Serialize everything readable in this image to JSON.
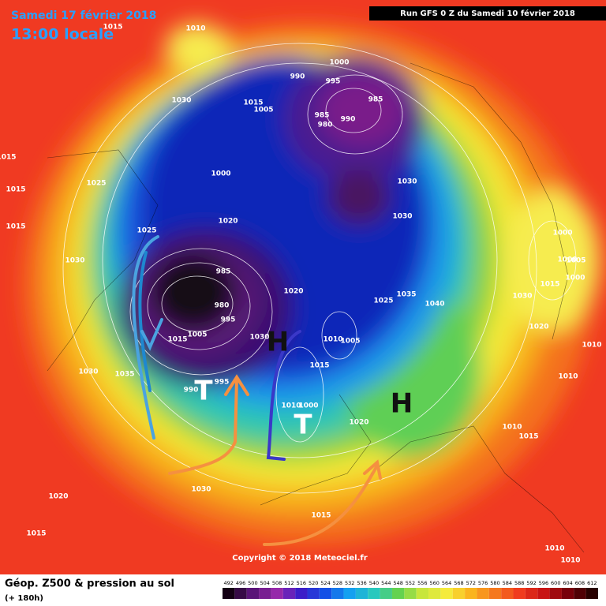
{
  "header": {
    "date": "Samedi 17 février 2018",
    "time": "13:00 locale",
    "run": "Run GFS 0 Z du Samedi 10 février 2018"
  },
  "map": {
    "pressure_labels": [
      "1010",
      "1015",
      "1030",
      "1015",
      "1015",
      "1025",
      "1015",
      "1030",
      "1025",
      "1000",
      "1020",
      "1015",
      "1005",
      "1000",
      "990",
      "995",
      "985",
      "985",
      "980",
      "990",
      "1030",
      "1030",
      "985",
      "980",
      "995",
      "1015",
      "1005",
      "990",
      "995",
      "1030",
      "1035",
      "1030",
      "1020",
      "1025",
      "1035",
      "1040",
      "1010",
      "1005",
      "1015",
      "1010",
      "1000",
      "1020",
      "1030",
      "1020",
      "1015",
      "1015",
      "1000",
      "1000",
      "1005",
      "1000",
      "1015",
      "1030",
      "1020",
      "1010",
      "1010",
      "1010",
      "1015",
      "1010",
      "1010"
    ],
    "systems": [
      "H",
      "H",
      "T",
      "T"
    ],
    "copyright": "Copyright © 2018 Meteociel.fr"
  },
  "legend": {
    "title": "Géop. Z500 & pression au sol",
    "subtitle": "(+ 180h)",
    "scale": [
      492,
      496,
      500,
      504,
      508,
      512,
      516,
      520,
      524,
      528,
      532,
      536,
      540,
      544,
      548,
      552,
      556,
      560,
      564,
      568,
      572,
      576,
      580,
      584,
      588,
      592,
      596,
      600,
      604,
      608,
      612
    ]
  }
}
